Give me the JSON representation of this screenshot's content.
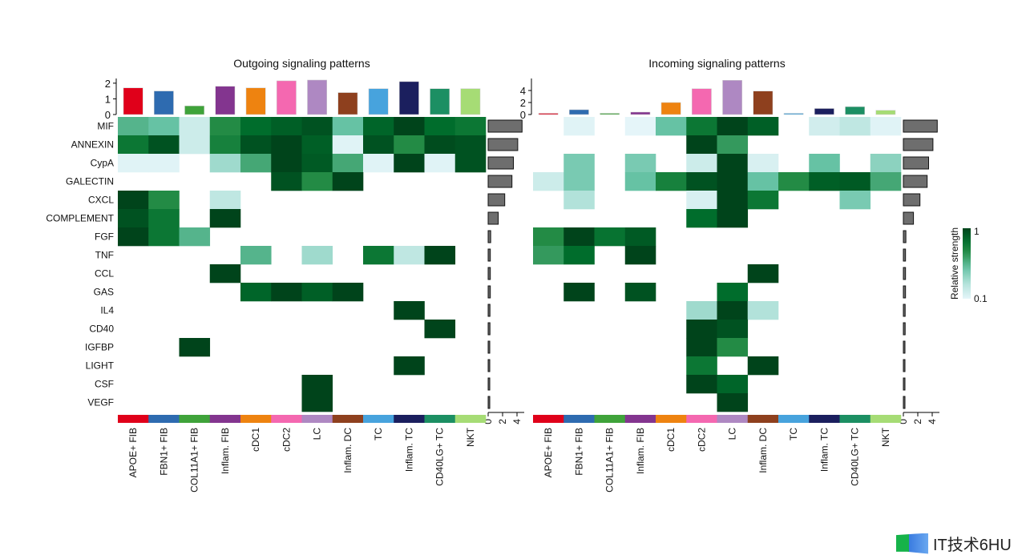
{
  "chart_data": {
    "type": "heatmap",
    "legend": {
      "title": "Relative strength",
      "min_label": "0.1",
      "max_label": "1",
      "placement": "right",
      "color_low": "#e5f5f9",
      "color_high": "#00441b"
    },
    "cell_types": [
      "APOE+ FIB",
      "FBN1+ FIB",
      "COL11A1+ FIB",
      "Inflam. FIB",
      "cDC1",
      "cDC2",
      "LC",
      "Inflam. DC",
      "TC",
      "Inflam. TC",
      "CD40LG+ TC",
      "NKT"
    ],
    "cell_colors": [
      "#e0001a",
      "#2e6bb0",
      "#3fa33a",
      "#83358f",
      "#ee8310",
      "#f468b0",
      "#ae88c2",
      "#8e401e",
      "#47a3dd",
      "#1b1f5e",
      "#1c8f63",
      "#a6dc75"
    ],
    "pathways": [
      "MIF",
      "ANNEXIN",
      "CypA",
      "GALECTIN",
      "CXCL",
      "COMPLEMENT",
      "FGF",
      "TNF",
      "CCL",
      "GAS",
      "IL4",
      "CD40",
      "IGFBP",
      "LIGHT",
      "CSF",
      "VEGF"
    ],
    "panels": [
      {
        "title": "Outgoing signaling patterns",
        "top_ticks": [
          0,
          1,
          2
        ],
        "top_ylim": [
          0,
          2.3
        ],
        "top_values": [
          1.7,
          1.5,
          0.55,
          1.8,
          1.7,
          2.15,
          2.2,
          1.4,
          1.65,
          2.1,
          1.65,
          1.65
        ],
        "side_ticks": [
          0,
          2,
          4
        ],
        "side_xlim": [
          0,
          5
        ],
        "side_values": [
          4.7,
          4.1,
          3.5,
          3.3,
          2.3,
          1.4,
          0.35,
          0.3,
          0.3,
          0.3,
          0.25,
          0.25,
          0.2,
          0.2,
          0.15,
          0.15
        ],
        "matrix": [
          [
            0.55,
            0.5,
            0.2,
            0.7,
            0.85,
            0.9,
            0.95,
            0.5,
            0.88,
            1,
            0.85,
            0.8
          ],
          [
            0.8,
            0.95,
            0.2,
            0.75,
            0.95,
            1,
            0.9,
            0.12,
            0.95,
            0.7,
            0.97,
            0.95
          ],
          [
            0.12,
            0.12,
            0,
            0.35,
            0.6,
            1,
            0.92,
            0.6,
            0.12,
            1,
            0.12,
            0.95
          ],
          [
            0,
            0,
            0,
            0,
            0,
            0.95,
            0.7,
            1,
            0,
            0,
            0,
            0
          ],
          [
            1,
            0.7,
            0,
            0.25,
            0,
            0,
            0,
            0,
            0,
            0,
            0,
            0
          ],
          [
            0.95,
            0.8,
            0,
            1,
            0,
            0,
            0,
            0,
            0,
            0,
            0,
            0
          ],
          [
            1,
            0.8,
            0.55,
            0,
            0,
            0,
            0,
            0,
            0,
            0,
            0,
            0
          ],
          [
            0,
            0,
            0,
            0,
            0.55,
            0,
            0.35,
            0,
            0.8,
            0.25,
            1,
            0
          ],
          [
            0,
            0,
            0,
            1,
            0,
            0,
            0,
            0,
            0,
            0,
            0,
            0
          ],
          [
            0,
            0,
            0,
            0,
            0.88,
            1,
            0.9,
            1,
            0,
            0,
            0,
            0
          ],
          [
            0,
            0,
            0,
            0,
            0,
            0,
            0,
            0,
            0,
            1,
            0,
            0
          ],
          [
            0,
            0,
            0,
            0,
            0,
            0,
            0,
            0,
            0,
            0,
            1,
            0
          ],
          [
            0,
            0,
            1,
            0,
            0,
            0,
            0,
            0,
            0,
            0,
            0,
            0
          ],
          [
            0,
            0,
            0,
            0,
            0,
            0,
            0,
            0,
            0,
            1,
            0,
            0
          ],
          [
            0,
            0,
            0,
            0,
            0,
            0,
            1,
            0,
            0,
            0,
            0,
            0
          ],
          [
            0,
            0,
            0,
            0,
            0,
            0,
            1,
            0,
            0,
            0,
            0,
            0
          ]
        ]
      },
      {
        "title": "Incoming signaling patterns",
        "top_ticks": [
          0,
          2,
          4
        ],
        "top_ylim": [
          0,
          6
        ],
        "top_values": [
          0.1,
          0.8,
          0.1,
          0.4,
          2.0,
          4.3,
          5.7,
          3.9,
          0.1,
          1.0,
          1.3,
          0.7
        ],
        "side_ticks": [
          0,
          2,
          4
        ],
        "side_xlim": [
          0,
          5
        ],
        "side_values": [
          4.7,
          4.1,
          3.5,
          3.3,
          2.3,
          1.4,
          0.35,
          0.3,
          0.3,
          0.3,
          0.25,
          0.25,
          0.2,
          0.2,
          0.15,
          0.15
        ],
        "matrix": [
          [
            0,
            0.12,
            0,
            0.1,
            0.5,
            0.8,
            1,
            0.9,
            0,
            0.18,
            0.25,
            0.12
          ],
          [
            0,
            0,
            0,
            0,
            0,
            1,
            0.65,
            0,
            0,
            0,
            0,
            0
          ],
          [
            0,
            0.45,
            0,
            0.45,
            0,
            0.2,
            1,
            0.15,
            0,
            0.5,
            0,
            0.4
          ],
          [
            0.2,
            0.45,
            0,
            0.5,
            0.75,
            0.95,
            1,
            0.5,
            0.7,
            0.9,
            0.92,
            0.6
          ],
          [
            0,
            0.3,
            0,
            0,
            0,
            0.15,
            1,
            0.8,
            0,
            0,
            0.45,
            0
          ],
          [
            0,
            0,
            0,
            0,
            0,
            0.85,
            1,
            0,
            0,
            0,
            0,
            0
          ],
          [
            0.7,
            1,
            0.82,
            0.92,
            0,
            0,
            0,
            0,
            0,
            0,
            0,
            0
          ],
          [
            0.65,
            0.85,
            0,
            1,
            0,
            0,
            0,
            0,
            0,
            0,
            0,
            0
          ],
          [
            0,
            0,
            0,
            0,
            0,
            0,
            0,
            1,
            0,
            0,
            0,
            0
          ],
          [
            0,
            1,
            0,
            0.95,
            0,
            0,
            0.85,
            0,
            0,
            0,
            0,
            0
          ],
          [
            0,
            0,
            0,
            0,
            0,
            0.35,
            1,
            0.3,
            0,
            0,
            0,
            0
          ],
          [
            0,
            0,
            0,
            0,
            0,
            1,
            0.95,
            0,
            0,
            0,
            0,
            0
          ],
          [
            0,
            0,
            0,
            0,
            0,
            1,
            0.7,
            0,
            0,
            0,
            0,
            0
          ],
          [
            0,
            0,
            0,
            0,
            0,
            0.8,
            0,
            1,
            0,
            0,
            0,
            0
          ],
          [
            0,
            0,
            0,
            0,
            0,
            1,
            0.88,
            0,
            0,
            0,
            0,
            0
          ],
          [
            0,
            0,
            0,
            0,
            0,
            0,
            1,
            0,
            0,
            0,
            0,
            0
          ]
        ]
      }
    ]
  },
  "watermark": "IT技术6HU"
}
